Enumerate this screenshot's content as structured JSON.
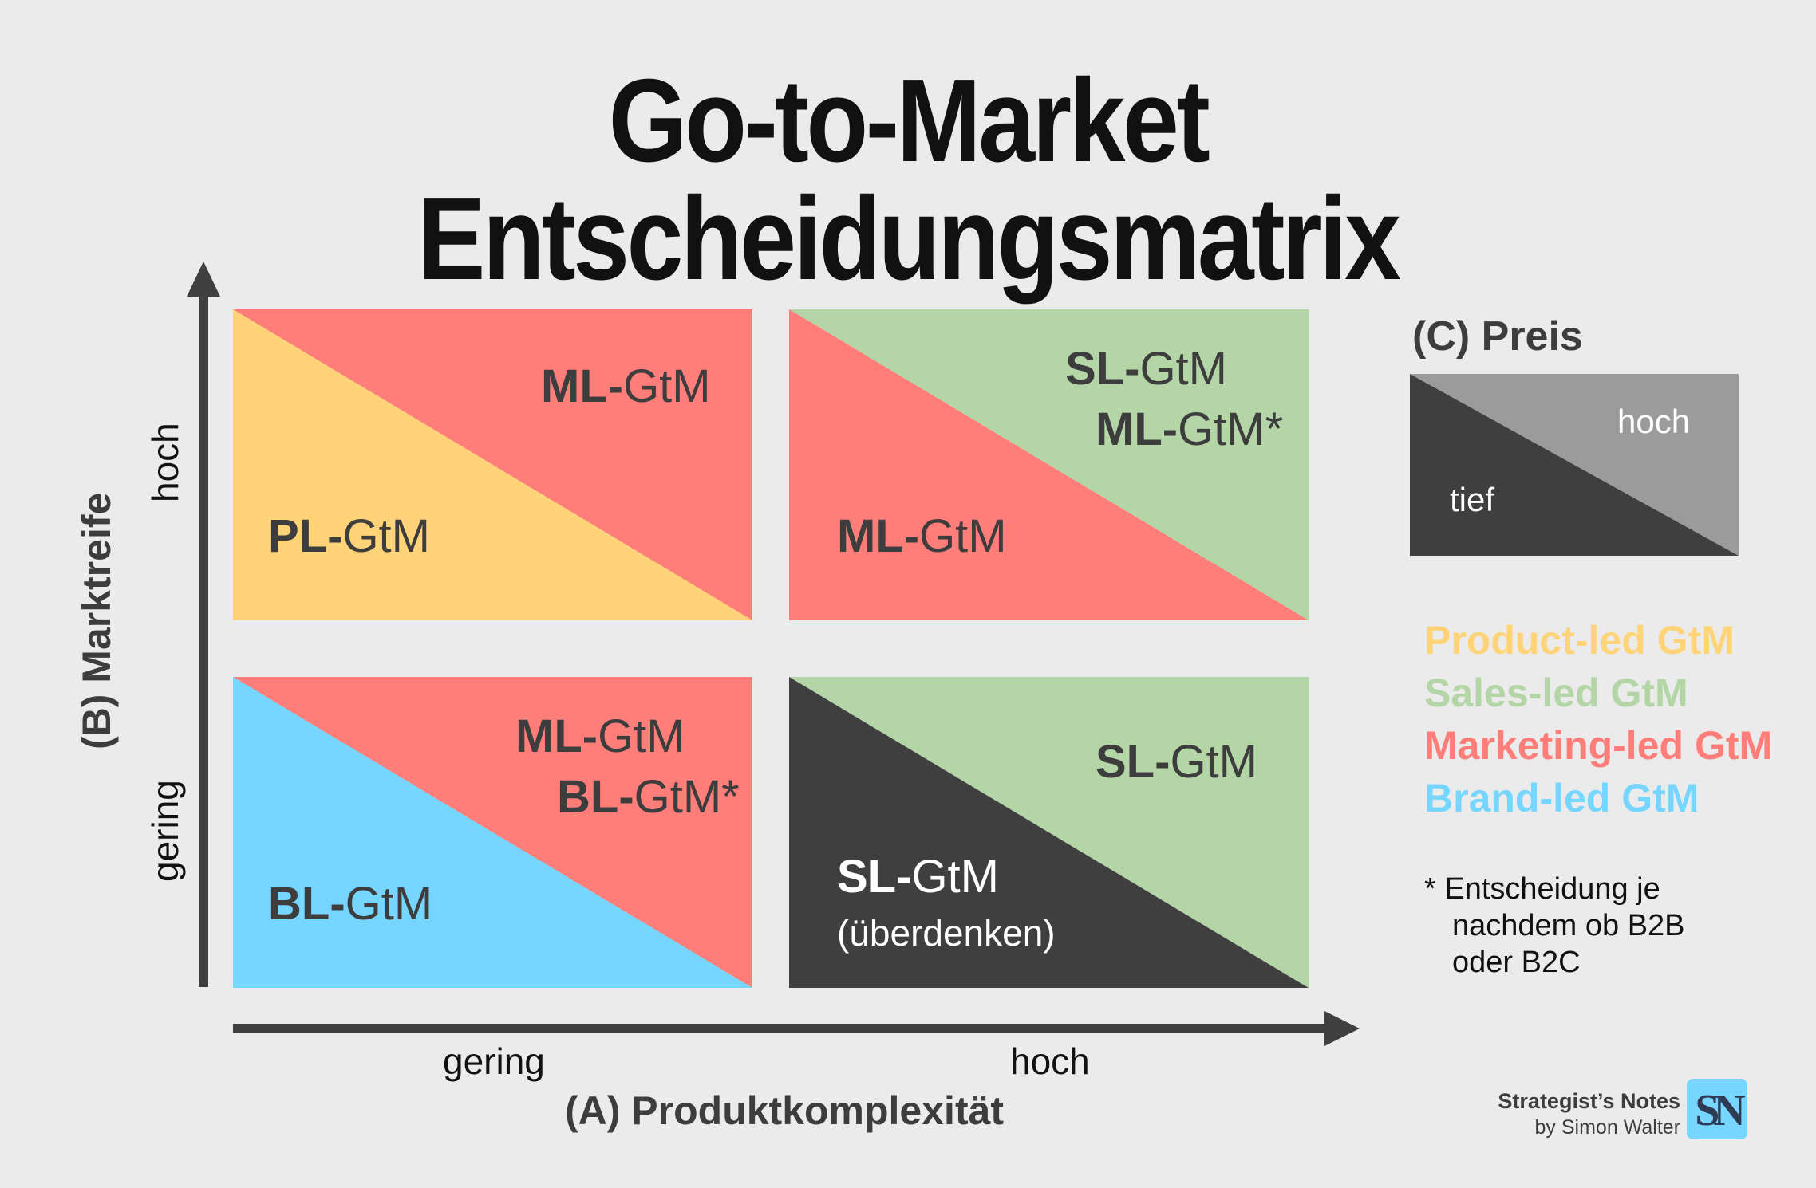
{
  "title": "Go-to-Market Entscheidungsmatrix",
  "colors": {
    "product_led": "#ffd478",
    "sales_led": "#b4d6a6",
    "marketing_led": "#ff7e79",
    "brand_led": "#76d6ff",
    "dark": "#3f3f3f",
    "price_high": "#9b9b9b",
    "axis": "#3f3f3f"
  },
  "axes": {
    "x_title": "(A) Produktkomplexität",
    "x_low": "gering",
    "x_high": "hoch",
    "y_title": "(B) Marktreife",
    "y_low": "gering",
    "y_high": "hoch"
  },
  "matrix": {
    "top_left": {
      "lower": {
        "bold": "PL-",
        "rest": "GtM"
      },
      "upper": {
        "bold": "ML-",
        "rest": "GtM"
      }
    },
    "top_right": {
      "lower": {
        "bold": "ML-",
        "rest": "GtM"
      },
      "upper1": {
        "bold": "SL-",
        "rest": "GtM"
      },
      "upper2": {
        "bold": "ML-",
        "rest": "GtM*"
      }
    },
    "bottom_left": {
      "lower": {
        "bold": "BL-",
        "rest": "GtM"
      },
      "upper1": {
        "bold": "ML-",
        "rest": "GtM"
      },
      "upper2": {
        "bold": "BL-",
        "rest": "GtM*"
      }
    },
    "bottom_right": {
      "lower": {
        "bold": "SL-",
        "rest": "GtM"
      },
      "lower_note": "(überdenken)",
      "upper": {
        "bold": "SL-",
        "rest": "GtM"
      }
    }
  },
  "price": {
    "title": "(C) Preis",
    "low": "tief",
    "high": "hoch"
  },
  "legend": [
    {
      "label": "Product-led GtM",
      "color": "#ffd478"
    },
    {
      "label": "Sales-led GtM",
      "color": "#b4d6a6"
    },
    {
      "label": "Marketing-led GtM",
      "color": "#ff7e79"
    },
    {
      "label": "Brand-led GtM",
      "color": "#76d6ff"
    }
  ],
  "footnote": [
    "* Entscheidung je",
    "nachdem ob B2B",
    "oder B2C"
  ],
  "brand": {
    "name": "Strategist’s Notes",
    "author": "by Simon Walter",
    "logo_letters": "SN"
  }
}
